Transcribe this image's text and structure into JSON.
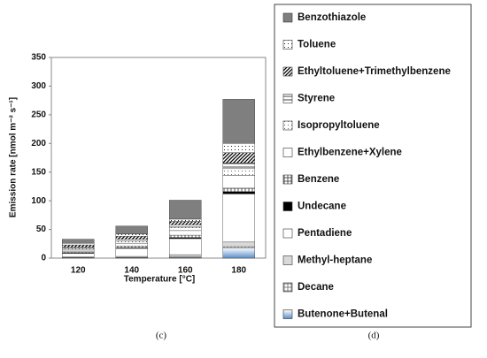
{
  "chart_data": {
    "type": "stacked-bar",
    "xlabel": "Temperature [°C]",
    "ylabel": "Emission rate [nmol m⁻² s⁻¹]",
    "categories": [
      "120",
      "140",
      "160",
      "180"
    ],
    "ylim": [
      0,
      350
    ],
    "yticks": [
      0,
      50,
      100,
      150,
      200,
      250,
      300,
      350
    ],
    "panel_labels": [
      "(c)",
      "(d)"
    ],
    "series": [
      {
        "name": "Butenone+Butenal",
        "color": "#5b8fc9",
        "pattern": "gradient",
        "values": [
          0.5,
          0.5,
          1,
          18
        ]
      },
      {
        "name": "Decane",
        "color": "#808080",
        "pattern": "grid",
        "values": [
          0.5,
          0.5,
          1,
          2
        ]
      },
      {
        "name": "Methyl-heptane",
        "color": "#d9d9d9",
        "pattern": "solid",
        "values": [
          1,
          2,
          4,
          8
        ]
      },
      {
        "name": "Pentadiene",
        "color": "#ffffff",
        "pattern": "solid",
        "values": [
          6,
          14,
          28,
          84
        ]
      },
      {
        "name": "Undecane",
        "color": "#000000",
        "pattern": "solid",
        "values": [
          1,
          1,
          2,
          4
        ]
      },
      {
        "name": "Benzene",
        "color": "#555555",
        "pattern": "grid",
        "values": [
          2,
          3,
          4,
          6
        ]
      },
      {
        "name": "Ethylbenzene+Xylene",
        "color": "#ffffff",
        "pattern": "solid",
        "values": [
          3,
          5,
          8,
          22
        ]
      },
      {
        "name": "Isopropyltoluene",
        "color": "#666666",
        "pattern": "dots",
        "values": [
          3,
          4,
          6,
          12
        ]
      },
      {
        "name": "Styrene",
        "color": "#444444",
        "pattern": "hlines",
        "values": [
          2,
          3,
          4,
          10
        ]
      },
      {
        "name": "Ethyltoluene+Trimethylbenzene",
        "color": "#000000",
        "pattern": "hatch",
        "values": [
          4,
          5,
          6,
          18
        ]
      },
      {
        "name": "Toluene",
        "color": "#222222",
        "pattern": "dots",
        "values": [
          3,
          4,
          4,
          16
        ]
      },
      {
        "name": "Benzothiazole",
        "color": "#7f7f7f",
        "pattern": "solid",
        "values": [
          7,
          14,
          33,
          77
        ]
      }
    ]
  }
}
